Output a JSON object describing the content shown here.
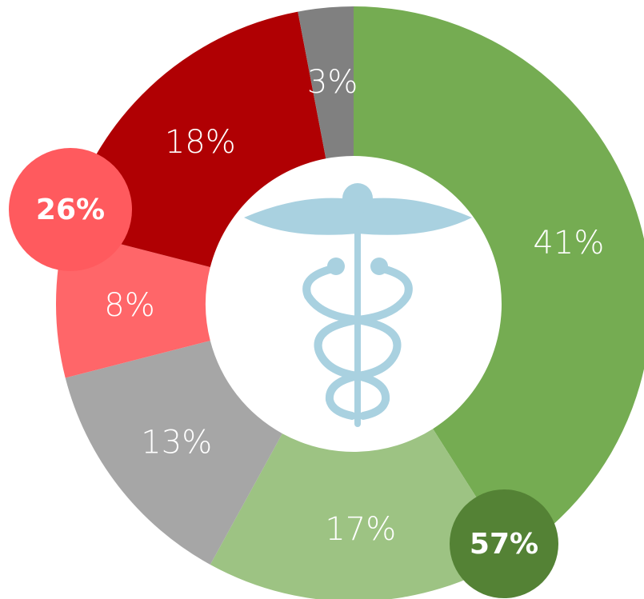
{
  "chart_data": {
    "type": "donut",
    "categories": [
      null,
      null,
      null,
      null,
      null,
      null
    ],
    "values": [
      41,
      17,
      13,
      8,
      18,
      3
    ],
    "value_labels": [
      "41%",
      "17%",
      "13%",
      "8%",
      "18%",
      "3%"
    ],
    "colors": [
      "#75ac52",
      "#9dc383",
      "#a6a6a6",
      "#ff6669",
      "#b00003",
      "#808080"
    ],
    "annotations": [
      {
        "text": "57%",
        "color": "#548235"
      },
      {
        "text": "26%",
        "color": "#ff5a5e"
      }
    ]
  }
}
